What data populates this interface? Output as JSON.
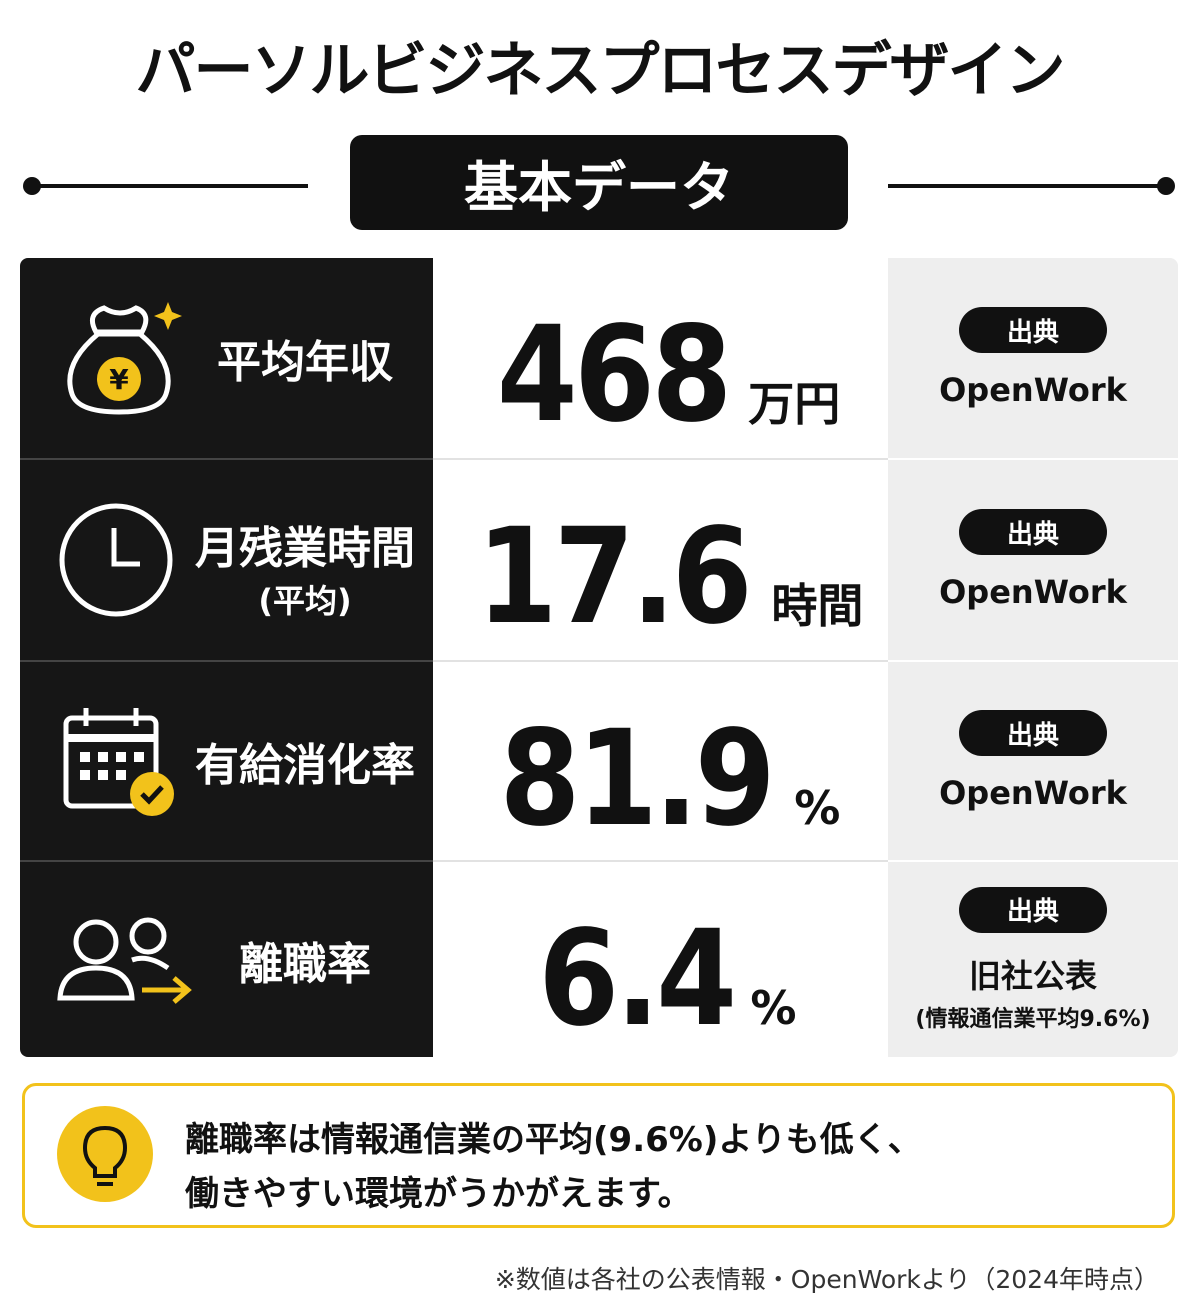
{
  "title": "パーソルビジネスプロセスデザイン",
  "subtitle": "基本データ",
  "rows": [
    {
      "label": "平均年収",
      "value": 468,
      "unit": "万円",
      "source_label": "出典",
      "source": "OpenWork"
    },
    {
      "label": "月残業時間",
      "label_note": "(平均)",
      "value": 17.6,
      "unit": "時間",
      "source_label": "出典",
      "source": "OpenWork"
    },
    {
      "label": "有給消化率",
      "value": 81.9,
      "unit": "%",
      "source_label": "出典",
      "source": "OpenWork"
    },
    {
      "label": "離職率",
      "value": 6.4,
      "unit": "%",
      "source_label": "出典",
      "source": "旧社公表",
      "source_note": "(情報通信業平均9.6%)"
    }
  ],
  "note": {
    "lines": [
      "離職率は情報通信業の平均(9.6%)よりも低く、",
      "働きやすい環境がうかがえます。"
    ]
  },
  "footnote": "※数値は各社の公表情報・OpenWorkより（2024年時点）"
}
